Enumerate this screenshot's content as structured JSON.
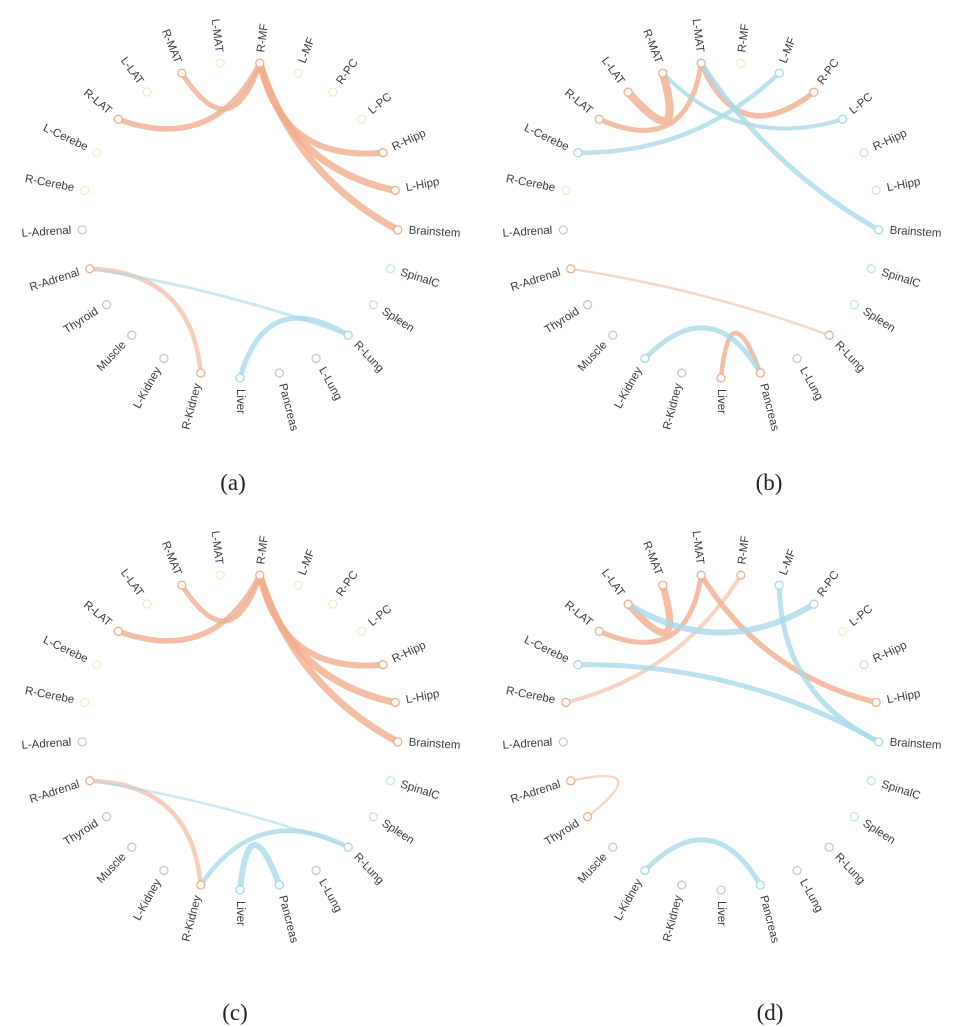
{
  "figure": {
    "background": "#ffffff",
    "colors": {
      "positive": "#f1ae8f",
      "negative": "#a9dae9",
      "node_brain": "#f2ecca",
      "node_neuro": "#c6e6e2",
      "node_gray": "#c9c9c9",
      "label": "#3b3b3b"
    },
    "node_order": [
      "L-MAT",
      "R-MF",
      "L-MF",
      "R-PC",
      "L-PC",
      "R-Hipp",
      "L-Hipp",
      "Brainstem",
      "SpinalC",
      "Spleen",
      "R-Lung",
      "L-Lung",
      "Pancreas",
      "Liver",
      "R-Kidney",
      "L-Kidney",
      "Muscle",
      "Thyroid",
      "R-Adrenal",
      "L-Adrenal",
      "R-Cerebe",
      "L-Cerebe",
      "R-LAT",
      "L-LAT",
      "R-MAT"
    ],
    "node_groups": {
      "brain": [
        "L-MAT",
        "R-MAT",
        "L-LAT",
        "R-LAT",
        "L-Cerebe",
        "R-Cerebe",
        "R-MF",
        "L-MF",
        "R-PC",
        "L-PC"
      ],
      "neuro": [
        "R-Hipp",
        "L-Hipp",
        "Brainstem",
        "SpinalC",
        "Spleen"
      ],
      "gray": [
        "R-Lung",
        "L-Lung",
        "Pancreas",
        "Liver",
        "R-Kidney",
        "L-Kidney",
        "Muscle",
        "Thyroid",
        "R-Adrenal",
        "L-Adrenal"
      ]
    },
    "panels": [
      {
        "caption": "(a)",
        "edges": [
          {
            "source": "R-MF",
            "target": "R-MAT",
            "type": "positive",
            "w": 5
          },
          {
            "source": "R-MF",
            "target": "R-LAT",
            "type": "positive",
            "w": 5.5
          },
          {
            "source": "R-MF",
            "target": "R-Hipp",
            "type": "positive",
            "w": 6
          },
          {
            "source": "R-MF",
            "target": "L-Hipp",
            "type": "positive",
            "w": 7
          },
          {
            "source": "R-MF",
            "target": "Brainstem",
            "type": "positive",
            "w": 7
          },
          {
            "source": "R-Adrenal",
            "target": "R-Kidney",
            "type": "positive",
            "w": 4.5,
            "o": 0.6
          },
          {
            "source": "R-Adrenal",
            "target": "R-Lung",
            "type": "negative",
            "w": 3,
            "o": 0.6
          },
          {
            "source": "Liver",
            "target": "R-Lung",
            "type": "negative",
            "w": 5
          }
        ]
      },
      {
        "caption": "(b)",
        "edges": [
          {
            "source": "L-LAT",
            "target": "R-MAT",
            "type": "positive",
            "w": 8
          },
          {
            "source": "R-LAT",
            "target": "L-MAT",
            "type": "positive",
            "w": 5
          },
          {
            "source": "L-MAT",
            "target": "R-PC",
            "type": "positive",
            "w": 5.5
          },
          {
            "source": "Liver",
            "target": "Pancreas",
            "type": "positive",
            "w": 4.5
          },
          {
            "source": "R-Adrenal",
            "target": "R-Lung",
            "type": "positive",
            "w": 2.5,
            "o": 0.5
          },
          {
            "source": "R-MAT",
            "target": "L-PC",
            "type": "negative",
            "w": 4
          },
          {
            "source": "L-MAT",
            "target": "Brainstem",
            "type": "negative",
            "w": 5
          },
          {
            "source": "L-MF",
            "target": "L-Cerebe",
            "type": "negative",
            "w": 4.5
          },
          {
            "source": "L-Kidney",
            "target": "Pancreas",
            "type": "negative",
            "w": 5
          }
        ]
      },
      {
        "caption": "(c)",
        "edges": [
          {
            "source": "R-MF",
            "target": "R-MAT",
            "type": "positive",
            "w": 5
          },
          {
            "source": "R-MF",
            "target": "R-LAT",
            "type": "positive",
            "w": 5.5
          },
          {
            "source": "R-MF",
            "target": "R-Hipp",
            "type": "positive",
            "w": 6
          },
          {
            "source": "R-MF",
            "target": "L-Hipp",
            "type": "positive",
            "w": 7
          },
          {
            "source": "R-MF",
            "target": "Brainstem",
            "type": "positive",
            "w": 7
          },
          {
            "source": "R-Adrenal",
            "target": "R-Kidney",
            "type": "positive",
            "w": 4.5,
            "o": 0.6
          },
          {
            "source": "R-Adrenal",
            "target": "R-Lung",
            "type": "negative",
            "w": 2.5,
            "o": 0.6
          },
          {
            "source": "R-Kidney",
            "target": "R-Lung",
            "type": "negative",
            "w": 4.5
          },
          {
            "source": "Liver",
            "target": "Pancreas",
            "type": "negative",
            "w": 6
          }
        ]
      },
      {
        "caption": "(d)",
        "edges": [
          {
            "source": "L-LAT",
            "target": "R-MAT",
            "type": "positive",
            "w": 7
          },
          {
            "source": "R-LAT",
            "target": "L-MAT",
            "type": "positive",
            "w": 5
          },
          {
            "source": "L-MAT",
            "target": "L-Hipp",
            "type": "positive",
            "w": 5.5
          },
          {
            "source": "R-MF",
            "target": "R-Cerebe",
            "type": "positive",
            "w": 4,
            "o": 0.55
          },
          {
            "source": "R-Adrenal",
            "target": "Thyroid",
            "type": "positive",
            "w": 2.5,
            "o": 0.5
          },
          {
            "source": "L-LAT",
            "target": "R-PC",
            "type": "negative",
            "w": 6
          },
          {
            "source": "L-MF",
            "target": "Brainstem",
            "type": "negative",
            "w": 5
          },
          {
            "source": "L-Cerebe",
            "target": "Brainstem",
            "type": "negative",
            "w": 5
          },
          {
            "source": "L-Kidney",
            "target": "Pancreas",
            "type": "negative",
            "w": 5
          }
        ]
      }
    ]
  }
}
